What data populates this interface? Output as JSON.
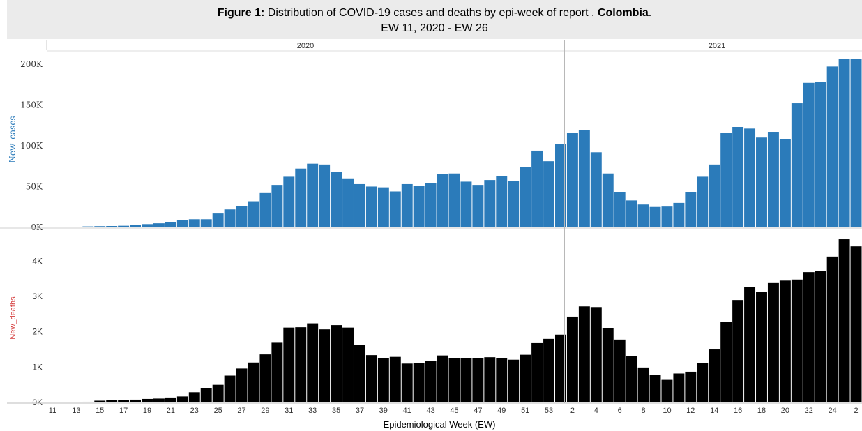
{
  "chart_data": {
    "type": "bar",
    "title_bold": "Figure 1:",
    "title_text": " Distribution of  COVID-19 cases and deaths by epi-week of report . ",
    "title_country": "Colombia",
    "title_end": ".",
    "subtitle": "EW 11, 2020 - EW 26",
    "xlabel": "Epidemiological Week (EW)",
    "year_headers": [
      "2020",
      "2021"
    ],
    "colors": {
      "cases": "#2b7bba",
      "deaths": "#000000",
      "cases_label": "#2b7bba",
      "deaths_label": "#d43a3a",
      "header_bg": "#ebebeb"
    },
    "weeks": [
      11,
      12,
      13,
      14,
      15,
      16,
      17,
      18,
      19,
      20,
      21,
      22,
      23,
      24,
      25,
      26,
      27,
      28,
      29,
      30,
      31,
      32,
      33,
      34,
      35,
      36,
      37,
      38,
      39,
      40,
      41,
      42,
      43,
      44,
      45,
      46,
      47,
      48,
      49,
      50,
      51,
      52,
      53,
      1,
      2,
      3,
      4,
      5,
      6,
      7,
      8,
      9,
      10,
      11,
      12,
      13,
      14,
      15,
      16,
      17,
      18,
      19,
      20,
      21,
      22,
      23,
      24,
      25,
      26
    ],
    "week_tick_labels": [
      "11",
      "",
      "13",
      "",
      "15",
      "",
      "17",
      "",
      "19",
      "",
      "21",
      "",
      "23",
      "",
      "25",
      "",
      "27",
      "",
      "29",
      "",
      "31",
      "",
      "33",
      "",
      "35",
      "",
      "37",
      "",
      "39",
      "",
      "41",
      "",
      "43",
      "",
      "45",
      "",
      "47",
      "",
      "49",
      "",
      "51",
      "",
      "53",
      "",
      "2",
      "",
      "4",
      "",
      "6",
      "",
      "8",
      "",
      "10",
      "",
      "12",
      "",
      "14",
      "",
      "16",
      "",
      "18",
      "",
      "20",
      "",
      "22",
      "",
      "24",
      "",
      "2"
    ],
    "series": [
      {
        "name": "New_cases",
        "yticks": [
          "0K",
          "50K",
          "100K",
          "150K",
          "200K"
        ],
        "ylim": [
          0,
          205000
        ],
        "values": [
          0,
          200,
          600,
          1200,
          1500,
          1700,
          2000,
          3000,
          4000,
          5000,
          6000,
          9000,
          10000,
          10000,
          17000,
          22000,
          26000,
          32000,
          42000,
          52000,
          62000,
          72000,
          78000,
          77000,
          68000,
          60000,
          53000,
          50000,
          49000,
          44000,
          53000,
          51000,
          54000,
          65000,
          66000,
          56000,
          52000,
          58000,
          63000,
          57000,
          74000,
          94000,
          81000,
          102000,
          116000,
          119000,
          92000,
          66000,
          43000,
          33000,
          28000,
          25000,
          25500,
          30000,
          43000,
          62000,
          77000,
          116000,
          123000,
          121000,
          110000,
          117000,
          108000,
          152000,
          177000,
          178000,
          197000,
          206000,
          206000
        ]
      },
      {
        "name": "New_deaths",
        "yticks": [
          "0K",
          "1K",
          "2K",
          "3K",
          "4K"
        ],
        "ylim": [
          0,
          4700
        ],
        "values": [
          0,
          0,
          10,
          20,
          50,
          60,
          70,
          80,
          100,
          110,
          140,
          170,
          290,
          400,
          500,
          760,
          960,
          1130,
          1360,
          1690,
          2120,
          2130,
          2240,
          2070,
          2190,
          2120,
          1630,
          1340,
          1250,
          1290,
          1100,
          1120,
          1180,
          1330,
          1260,
          1260,
          1250,
          1280,
          1250,
          1210,
          1350,
          1680,
          1800,
          1920,
          2430,
          2720,
          2700,
          2100,
          1780,
          1310,
          990,
          790,
          640,
          820,
          870,
          1120,
          1500,
          2280,
          2900,
          3270,
          3140,
          3380,
          3450,
          3480,
          3690,
          3720,
          4130,
          4620,
          4420
        ]
      }
    ]
  }
}
